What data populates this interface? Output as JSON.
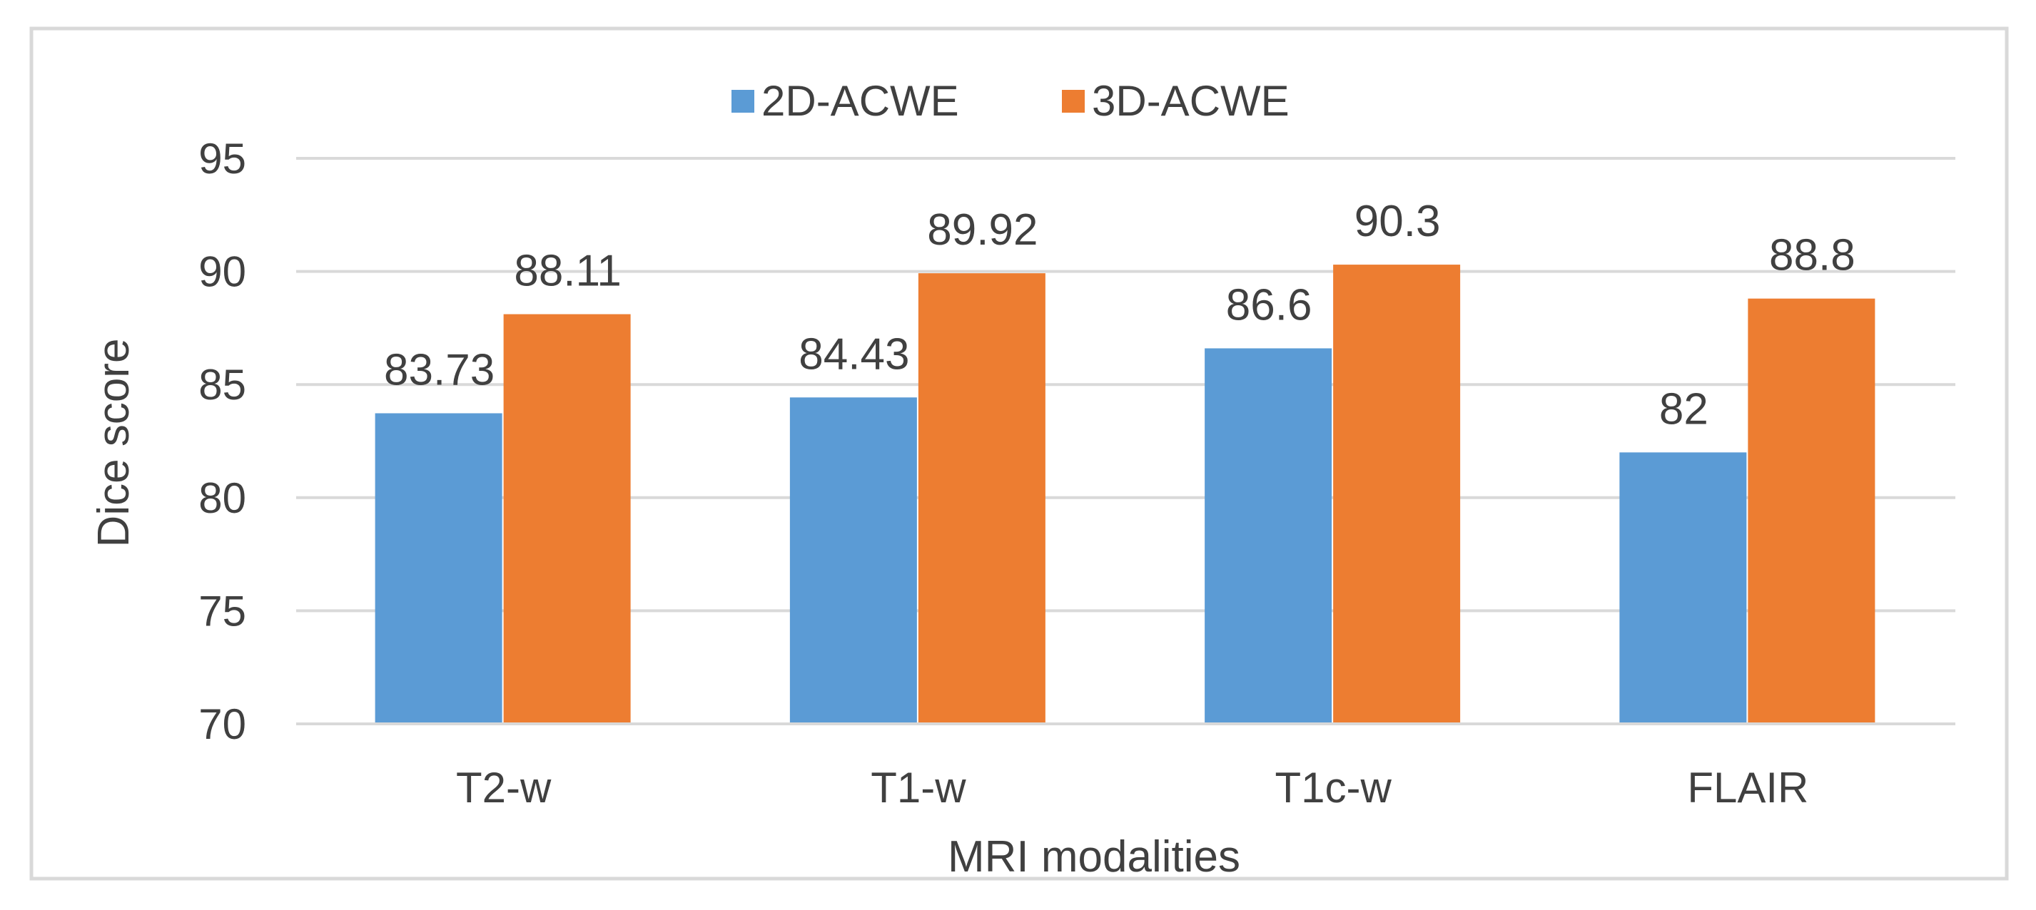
{
  "chart_data": {
    "type": "bar",
    "title": "",
    "xlabel": "MRI modalities",
    "ylabel": "Dice score",
    "categories": [
      "T2-w",
      "T1-w",
      "T1c-w",
      "FLAIR"
    ],
    "series": [
      {
        "name": "2D-ACWE",
        "color": "#5B9BD5",
        "values": [
          83.73,
          84.43,
          86.6,
          82
        ],
        "labels": [
          "83.73",
          "84.43",
          "86.6",
          "82"
        ]
      },
      {
        "name": "3D-ACWE",
        "color": "#ED7D31",
        "values": [
          88.11,
          89.92,
          90.3,
          88.8
        ],
        "labels": [
          "88.11",
          "89.92",
          "90.3",
          "88.8"
        ]
      }
    ],
    "ylim": [
      70,
      95
    ],
    "yticks": [
      70,
      75,
      80,
      85,
      90,
      95
    ],
    "ytick_labels": [
      "70",
      "75",
      "80",
      "85",
      "90",
      "95"
    ],
    "grid": true,
    "legend_position": "top-center"
  }
}
